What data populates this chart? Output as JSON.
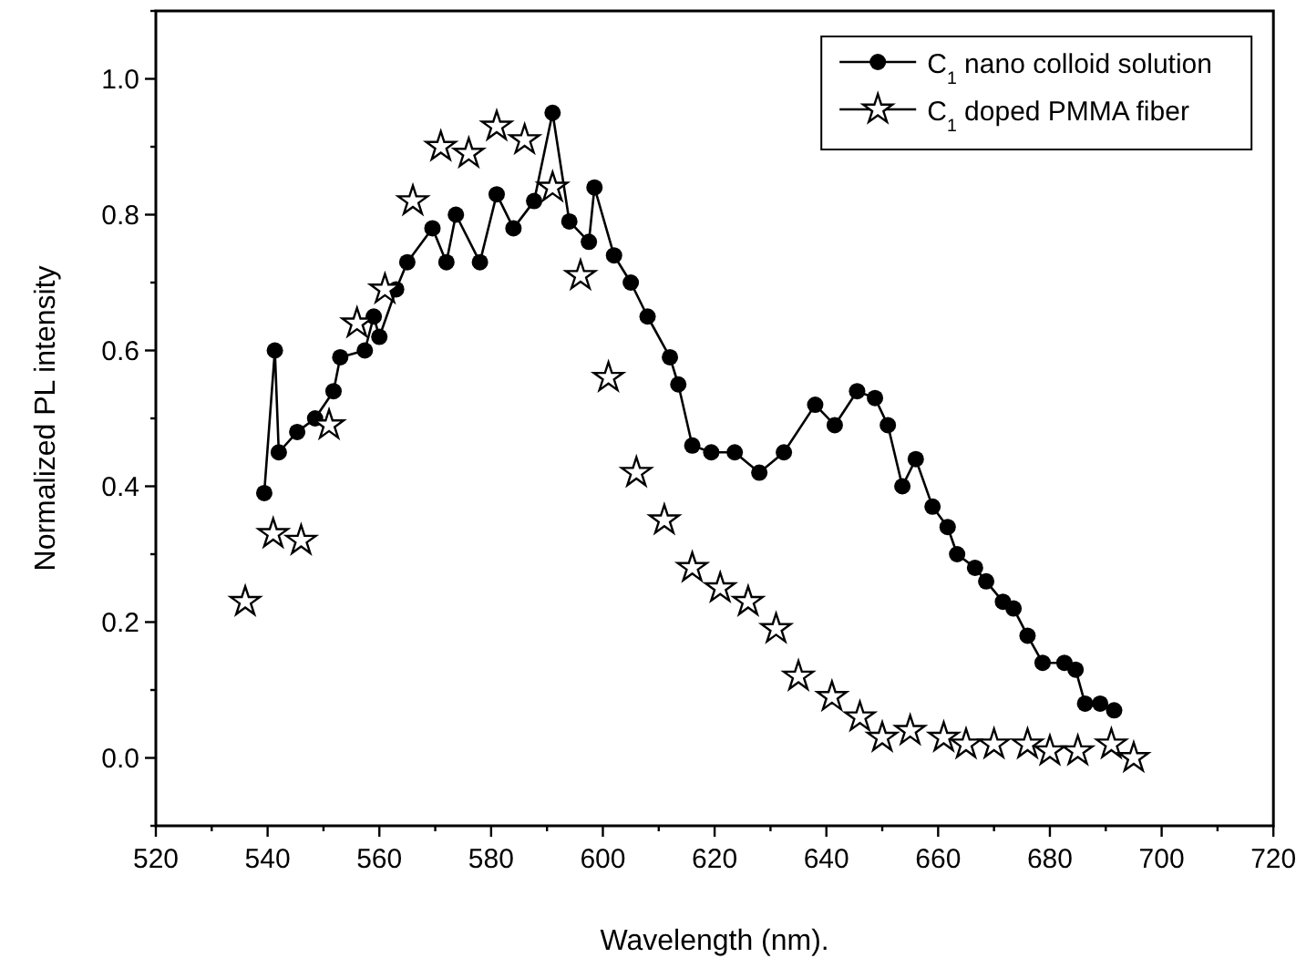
{
  "chart_data": {
    "type": "line",
    "xlabel": "Wavelength (nm).",
    "ylabel": "Normalized PL intensity",
    "xlim": [
      520,
      720
    ],
    "ylim": [
      -0.1,
      1.1
    ],
    "xticks": [
      520,
      {
        "value": 530,
        "label": null
      },
      540,
      {
        "value": 550,
        "label": null
      },
      560,
      {
        "value": 570,
        "label": null
      },
      580,
      {
        "value": 590,
        "label": null
      },
      600,
      {
        "value": 610,
        "label": null
      },
      620,
      {
        "value": 630,
        "label": null
      },
      640,
      {
        "value": 650,
        "label": null
      },
      660,
      {
        "value": 670,
        "label": null
      },
      680,
      {
        "value": 690,
        "label": null
      },
      700,
      {
        "value": 710,
        "label": null
      },
      720
    ],
    "yticks": [
      {
        "value": -0.1,
        "label": null
      },
      {
        "value": 0,
        "label": "0.0"
      },
      {
        "value": 0.1,
        "label": null
      },
      0.2,
      {
        "value": 0.3,
        "label": null
      },
      0.4,
      {
        "value": 0.5,
        "label": null
      },
      0.6,
      {
        "value": 0.7,
        "label": null
      },
      0.8,
      {
        "value": 0.9,
        "label": null
      },
      {
        "value": 1,
        "label": "1.0"
      },
      {
        "value": 1.1,
        "label": null
      }
    ],
    "legend": "top right",
    "grid": false,
    "series": [
      {
        "name": "C$_{1}$ nano colloid solution",
        "marker": "circle",
        "line_style": "solid",
        "color": "#000000",
        "x": [
          539.4,
          541.3,
          542,
          545.3,
          548.5,
          551.8,
          553,
          557.4,
          559,
          560,
          563,
          565,
          569.5,
          572,
          573.7,
          578,
          581,
          584,
          587.7,
          591,
          594,
          597.5,
          598.5,
          602,
          605,
          608,
          612,
          613.5,
          616,
          619.4,
          623.6,
          628,
          632.4,
          638,
          641.5,
          645.5,
          648.7,
          651,
          653.6,
          656,
          659,
          661.7,
          663.4,
          666.6,
          668.6,
          671.6,
          673.5,
          676,
          678.7,
          682.6,
          684.6,
          686.3,
          689,
          691.5
        ],
        "values": [
          0.39,
          0.6,
          0.45,
          0.48,
          0.5,
          0.54,
          0.59,
          0.6,
          0.65,
          0.62,
          0.69,
          0.73,
          0.78,
          0.73,
          0.8,
          0.73,
          0.83,
          0.78,
          0.82,
          0.95,
          0.79,
          0.76,
          0.84,
          0.74,
          0.7,
          0.65,
          0.59,
          0.55,
          0.46,
          0.45,
          0.45,
          0.42,
          0.45,
          0.52,
          0.49,
          0.54,
          0.53,
          0.49,
          0.4,
          0.44,
          0.37,
          0.34,
          0.3,
          0.28,
          0.26,
          0.23,
          0.22,
          0.18,
          0.14,
          0.14,
          0.13,
          0.08,
          0.08,
          0.07
        ]
      },
      {
        "name": "C$_{1}$ doped PMMA fiber",
        "type": "scatter",
        "marker": "star",
        "color": "#000000",
        "x": [
          536,
          541,
          546,
          551,
          556,
          561,
          566,
          571,
          576,
          581,
          586,
          591,
          596,
          601,
          606,
          611,
          616,
          621,
          626,
          631,
          635,
          641,
          646,
          650,
          655,
          661,
          665,
          670,
          676,
          680,
          685,
          691,
          695
        ],
        "values": [
          0.23,
          0.33,
          0.32,
          0.49,
          0.64,
          0.69,
          0.82,
          0.9,
          0.89,
          0.93,
          0.91,
          0.84,
          0.71,
          0.56,
          0.42,
          0.35,
          0.28,
          0.25,
          0.23,
          0.19,
          0.12,
          0.09,
          0.06,
          0.03,
          0.04,
          0.03,
          0.02,
          0.02,
          0.02,
          0.01,
          0.01,
          0.02,
          0.0
        ]
      }
    ]
  }
}
